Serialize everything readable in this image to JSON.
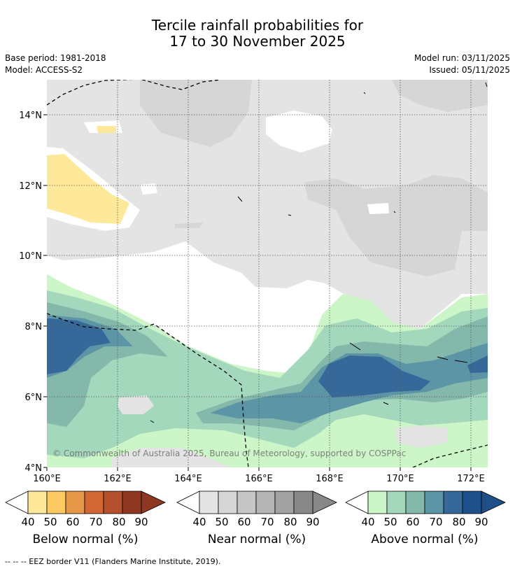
{
  "title_line1": "Tercile rainfall probabilities for",
  "title_line2": "17 to 30 November 2025",
  "base_period": "Base period: 1981-2018",
  "model": "Model: ACCESS-S2",
  "model_run": "Model run: 03/11/2025",
  "issued": "Issued: 05/11/2025",
  "lat_labels": [
    "14°N",
    "12°N",
    "10°N",
    "8°N",
    "6°N",
    "4°N"
  ],
  "lon_labels": [
    "160°E",
    "162°E",
    "164°E",
    "166°E",
    "168°E",
    "170°E",
    "172°E"
  ],
  "copyright": "© Commonwealth of Australia 2025, Bureau of Meteorology, supported by COSPPac",
  "colorbars": [
    {
      "caption": "Below normal (%)",
      "ticks": [
        "40",
        "50",
        "60",
        "70",
        "80",
        "90"
      ],
      "colors": [
        "#fee89a",
        "#fdc963",
        "#e69848",
        "#d26634",
        "#b64f2c",
        "#8e3822"
      ]
    },
    {
      "caption": "Near normal (%)",
      "ticks": [
        "40",
        "50",
        "60",
        "70",
        "80",
        "90"
      ],
      "colors": [
        "#e4e4e4",
        "#d6d6d6",
        "#c6c6c6",
        "#b4b4b4",
        "#a2a2a2",
        "#888888"
      ]
    },
    {
      "caption": "Above normal (%)",
      "ticks": [
        "40",
        "50",
        "60",
        "70",
        "80",
        "90"
      ],
      "colors": [
        "#ccf6c8",
        "#a4d8bc",
        "#84b8aa",
        "#5c95a6",
        "#36699a",
        "#1f4f88"
      ]
    }
  ],
  "footnote": "--  --  -- EEZ border V11 (Flanders Marine Institute, 2019)."
}
